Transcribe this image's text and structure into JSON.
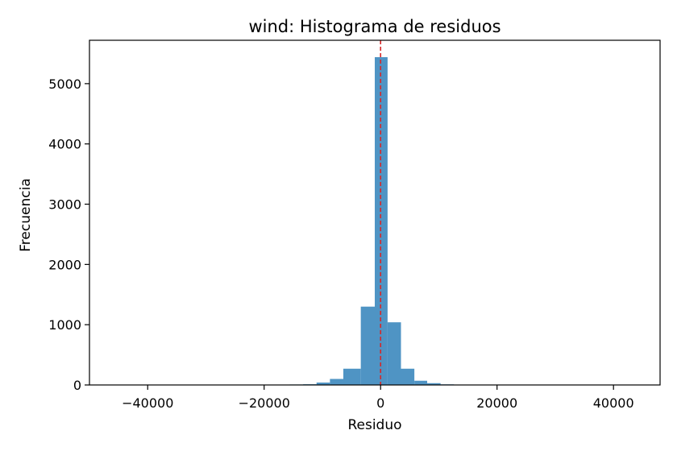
{
  "chart_data": {
    "type": "bar",
    "title": "wind: Histograma de residuos",
    "xlabel": "Residuo",
    "ylabel": "Frecuencia",
    "xlim": [
      -50000,
      48000
    ],
    "ylim": [
      0,
      5720
    ],
    "x_ticks": [
      -40000,
      -20000,
      0,
      20000,
      40000
    ],
    "x_tick_labels": [
      "−40000",
      "−20000",
      "0",
      "20000",
      "40000"
    ],
    "y_ticks": [
      0,
      1000,
      2000,
      3000,
      4000,
      5000
    ],
    "y_tick_labels": [
      "0",
      "1000",
      "2000",
      "3000",
      "4000",
      "5000"
    ],
    "grid": false,
    "bar_color": "#4f94c4",
    "reference_line": {
      "x": 0,
      "color": "#d62728",
      "style": "dashed"
    },
    "bins": [
      {
        "x0": -45500,
        "x1": -43200,
        "count": 1
      },
      {
        "x0": -43200,
        "x1": -40900,
        "count": 1
      },
      {
        "x0": -40900,
        "x1": -38600,
        "count": 1
      },
      {
        "x0": -38600,
        "x1": -36300,
        "count": 1
      },
      {
        "x0": -36300,
        "x1": -34000,
        "count": 1
      },
      {
        "x0": -34000,
        "x1": -31700,
        "count": 1
      },
      {
        "x0": -31700,
        "x1": -29400,
        "count": 2
      },
      {
        "x0": -29400,
        "x1": -27100,
        "count": 2
      },
      {
        "x0": -27100,
        "x1": -24800,
        "count": 2
      },
      {
        "x0": -24800,
        "x1": -22500,
        "count": 3
      },
      {
        "x0": -22500,
        "x1": -20200,
        "count": 3
      },
      {
        "x0": -20200,
        "x1": -17900,
        "count": 4
      },
      {
        "x0": -17900,
        "x1": -15600,
        "count": 5
      },
      {
        "x0": -15600,
        "x1": -13300,
        "count": 8
      },
      {
        "x0": -13300,
        "x1": -11000,
        "count": 12
      },
      {
        "x0": -11000,
        "x1": -8700,
        "count": 40
      },
      {
        "x0": -8700,
        "x1": -6400,
        "count": 100
      },
      {
        "x0": -6400,
        "x1": -3400,
        "count": 270
      },
      {
        "x0": -3400,
        "x1": -1000,
        "count": 1300
      },
      {
        "x0": -1000,
        "x1": 1200,
        "count": 5440
      },
      {
        "x0": 1200,
        "x1": 3500,
        "count": 1040
      },
      {
        "x0": 3500,
        "x1": 5800,
        "count": 270
      },
      {
        "x0": 5800,
        "x1": 8000,
        "count": 70
      },
      {
        "x0": 8000,
        "x1": 10300,
        "count": 30
      },
      {
        "x0": 10300,
        "x1": 12600,
        "count": 10
      },
      {
        "x0": 12600,
        "x1": 14900,
        "count": 6
      },
      {
        "x0": 14900,
        "x1": 17200,
        "count": 4
      },
      {
        "x0": 17200,
        "x1": 19500,
        "count": 3
      },
      {
        "x0": 19500,
        "x1": 21800,
        "count": 3
      },
      {
        "x0": 21800,
        "x1": 24100,
        "count": 2
      },
      {
        "x0": 24100,
        "x1": 26400,
        "count": 2
      },
      {
        "x0": 26400,
        "x1": 28700,
        "count": 2
      },
      {
        "x0": 28700,
        "x1": 31000,
        "count": 1
      },
      {
        "x0": 31000,
        "x1": 33300,
        "count": 1
      },
      {
        "x0": 33300,
        "x1": 35600,
        "count": 1
      },
      {
        "x0": 35600,
        "x1": 37900,
        "count": 1
      },
      {
        "x0": 37900,
        "x1": 40200,
        "count": 1
      },
      {
        "x0": 40200,
        "x1": 42500,
        "count": 1
      },
      {
        "x0": 42500,
        "x1": 44800,
        "count": 1
      }
    ]
  }
}
